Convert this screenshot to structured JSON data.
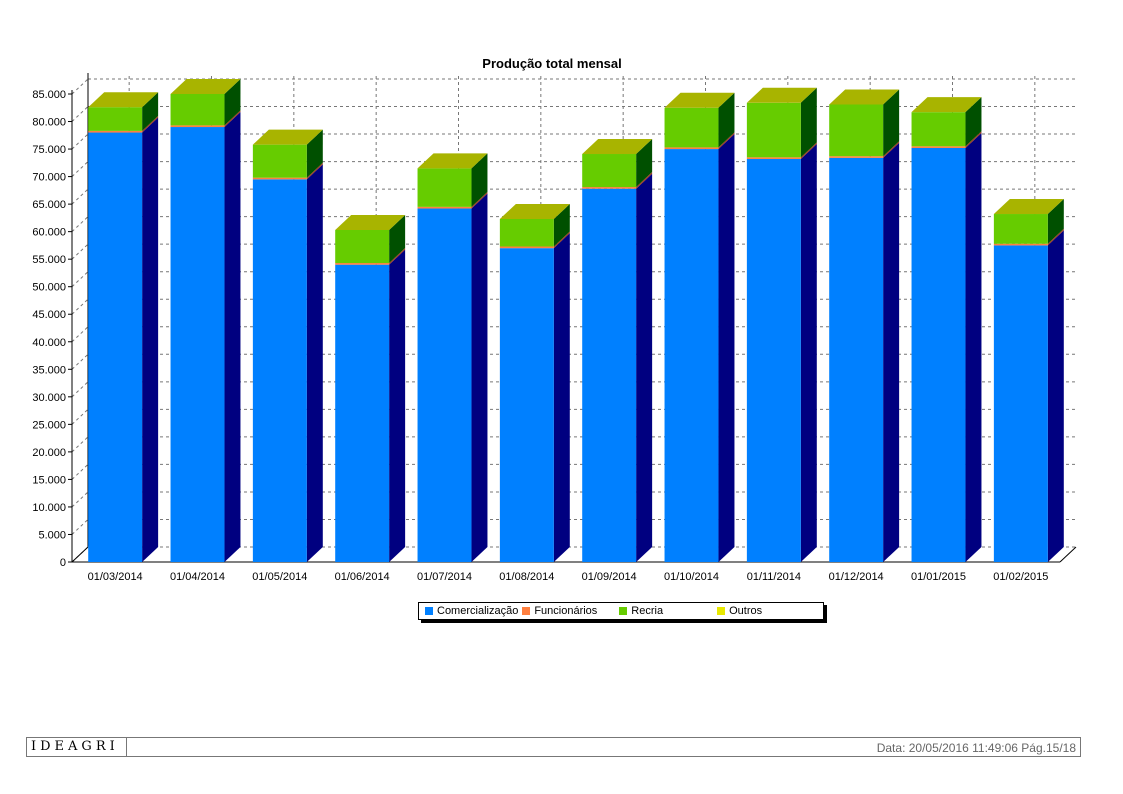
{
  "chart_data": {
    "type": "bar",
    "stacked": true,
    "three_d": true,
    "title": "Produção total mensal",
    "categories": [
      "01/03/2014",
      "01/04/2014",
      "01/05/2014",
      "01/06/2014",
      "01/07/2014",
      "01/08/2014",
      "01/09/2014",
      "01/10/2014",
      "01/11/2014",
      "01/12/2014",
      "01/01/2015",
      "01/02/2015"
    ],
    "series": [
      {
        "name": "Comercialização",
        "color": "#0080ff",
        "side_color": "#000080",
        "top_color": "#0070e0",
        "values": [
          78000,
          79000,
          69500,
          54000,
          64200,
          57000,
          67800,
          75000,
          73200,
          73400,
          75200,
          57500
        ]
      },
      {
        "name": "Funcionários",
        "color": "#ff7f3f",
        "side_color": "#a04020",
        "top_color": "#ff9060",
        "values": [
          300,
          300,
          300,
          300,
          300,
          300,
          300,
          300,
          300,
          300,
          300,
          300
        ]
      },
      {
        "name": "Recria",
        "color": "#66cc00",
        "side_color": "#005000",
        "top_color": "#a8b400",
        "values": [
          4300,
          5700,
          6000,
          6000,
          7000,
          5000,
          6000,
          7200,
          9900,
          9400,
          6200,
          5400
        ]
      },
      {
        "name": "Outros",
        "color": "#e8e800",
        "side_color": "#808000",
        "top_color": "#a8b400",
        "values": [
          0,
          0,
          0,
          0,
          0,
          0,
          0,
          0,
          0,
          0,
          0,
          0
        ]
      }
    ],
    "y_ticks": [
      "0",
      "5.000",
      "10.000",
      "15.000",
      "20.000",
      "25.000",
      "30.000",
      "35.000",
      "40.000",
      "45.000",
      "50.000",
      "55.000",
      "60.000",
      "65.000",
      "70.000",
      "75.000",
      "80.000",
      "85.000"
    ],
    "ylim": [
      0,
      85000
    ],
    "y_step": 5000,
    "grid": true,
    "legend_position": "bottom"
  },
  "footer": {
    "logo": "IDEAGRI",
    "info": "Data: 20/05/2016 11:49:06 Pág.15/18"
  }
}
